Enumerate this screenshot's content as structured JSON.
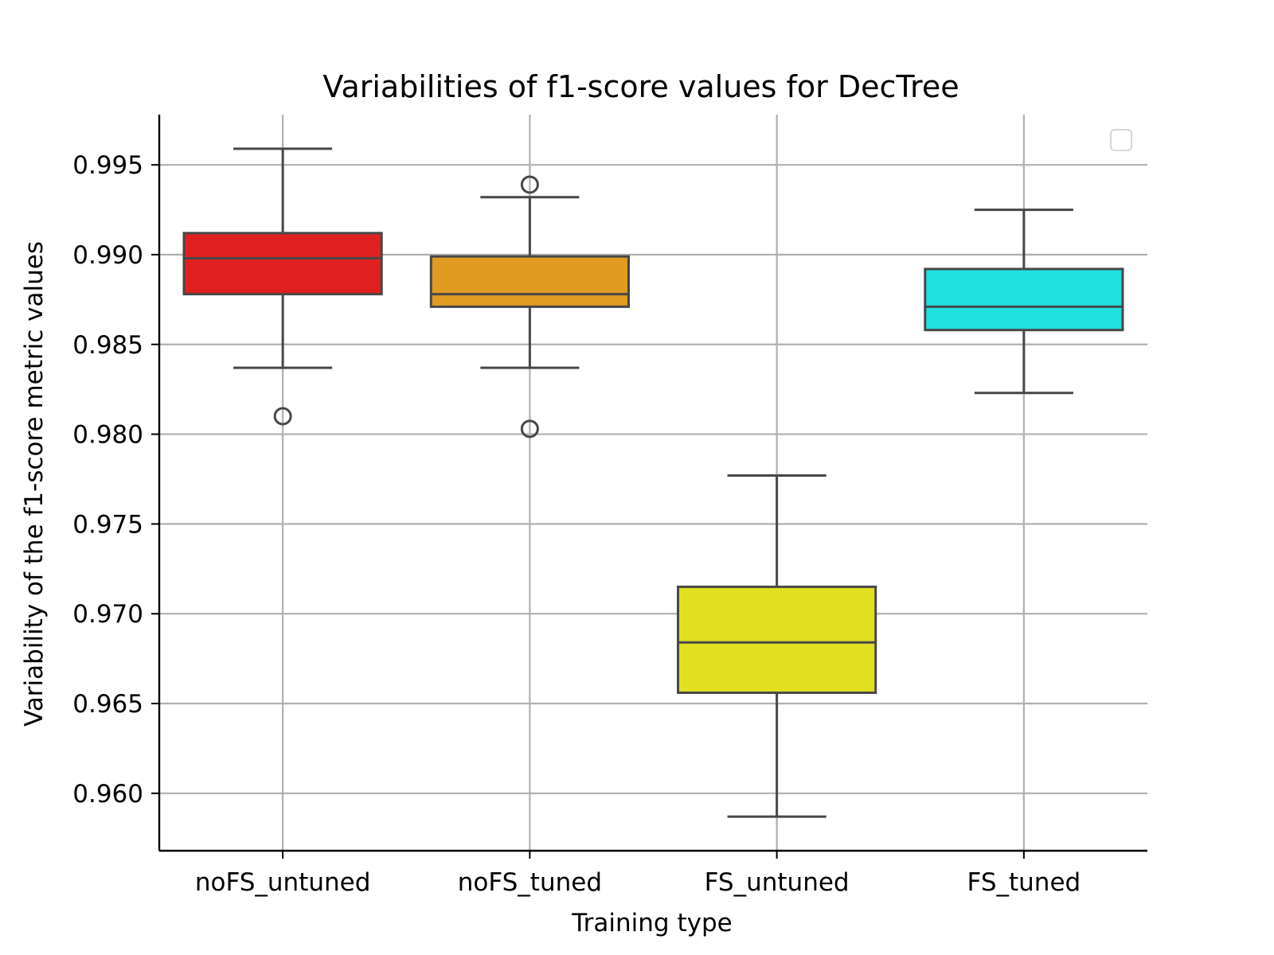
{
  "chart_data": {
    "type": "box",
    "title": "Variabilities of f1-score values for DecTree",
    "xlabel": "Training type",
    "ylabel": "Variability of the f1-score metric values",
    "categories": [
      "noFS_untuned",
      "noFS_tuned",
      "FS_untuned",
      "FS_tuned"
    ],
    "yticks": [
      "0.960",
      "0.965",
      "0.970",
      "0.975",
      "0.980",
      "0.985",
      "0.990",
      "0.995"
    ],
    "ytick_values": [
      0.96,
      0.965,
      0.97,
      0.975,
      0.98,
      0.985,
      0.99,
      0.995
    ],
    "ylim": [
      0.9568,
      0.9978
    ],
    "grid": true,
    "legend": "top-right (empty)",
    "boxes": [
      {
        "category": "noFS_untuned",
        "whisker_low": 0.9837,
        "q1": 0.9878,
        "median": 0.9898,
        "q3": 0.9912,
        "whisker_high": 0.9959,
        "outliers": [
          0.981
        ],
        "color": "#e02020"
      },
      {
        "category": "noFS_tuned",
        "whisker_low": 0.9837,
        "q1": 0.9871,
        "median": 0.9878,
        "q3": 0.9899,
        "whisker_high": 0.9932,
        "outliers": [
          0.9939,
          0.9803
        ],
        "color": "#e09b20"
      },
      {
        "category": "FS_untuned",
        "whisker_low": 0.9587,
        "q1": 0.9656,
        "median": 0.9684,
        "q3": 0.9715,
        "whisker_high": 0.9777,
        "outliers": [],
        "color": "#e0e020"
      },
      {
        "category": "FS_tuned",
        "whisker_low": 0.9823,
        "q1": 0.9858,
        "median": 0.9871,
        "q3": 0.9892,
        "whisker_high": 0.9925,
        "outliers": [],
        "color": "#20e0e0"
      }
    ]
  }
}
